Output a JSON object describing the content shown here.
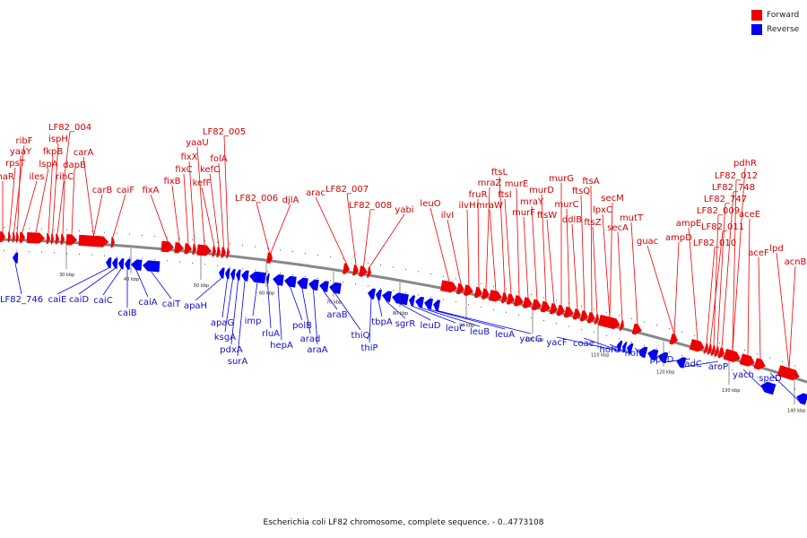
{
  "legend": {
    "forward_label": "Forward",
    "reverse_label": "Reverse",
    "forward_color": "#ee0000",
    "reverse_color": "#0000ee"
  },
  "caption": "Escherichia coli LF82 chromosome, complete sequence. - 0..4773108",
  "colors": {
    "forward_text": "#d00000",
    "reverse_text": "#1010c0",
    "backbone": "#888888"
  },
  "scale_labels": [
    "30 kbp",
    "40 kbp",
    "50 kbp",
    "60 kbp",
    "70 kbp",
    "80 kbp",
    "90 kbp",
    "100 kbp",
    "110 kbp",
    "120 kbp",
    "130 kbp",
    "140 kbp"
  ],
  "forward_genes": [
    "nhaR",
    "rpsT",
    "ribF",
    "yaaY",
    "iles",
    "lspA",
    "fkpB",
    "ispH",
    "LF82_004",
    "rihC",
    "dapB",
    "carA",
    "carB",
    "caiF",
    "fixA",
    "fixB",
    "fixC",
    "fixX",
    "yaaU",
    "kefF",
    "kefC",
    "folA",
    "LF82_005",
    "LF82_006",
    "djlA",
    "arac",
    "LF82_007",
    "LF82_008",
    "yabi",
    "leuO",
    "ilvI",
    "ilvH",
    "fruR",
    "mraZ",
    "mraW",
    "ftsL",
    "ftsI",
    "murE",
    "murF",
    "mraY",
    "murD",
    "ftsW",
    "murG",
    "murC",
    "ddlB",
    "ftsQ",
    "ftsA",
    "ftsZ",
    "lpxC",
    "secM",
    "secA",
    "mutT",
    "guac",
    "ampD",
    "ampE",
    "LF82_010",
    "LF82_011",
    "LF82_009",
    "LF82_747",
    "LF82_748",
    "LF82_012",
    "pdhR",
    "aceE",
    "aceF",
    "lpd",
    "acnB"
  ],
  "reverse_genes": [
    "LF82_746",
    "caiE",
    "caiD",
    "caiC",
    "caiB",
    "caiA",
    "caiT",
    "apaH",
    "apaG",
    "ksgA",
    "pdxA",
    "surA",
    "imp",
    "rluA",
    "hepA",
    "polB",
    "arad",
    "araA",
    "araB",
    "thiQ",
    "thiP",
    "tbpA",
    "sgrR",
    "leuD",
    "leuC",
    "leuB",
    "leuA",
    "yacG",
    "yacF",
    "coae",
    "hofC",
    "hofB",
    "ppdD",
    "nadC",
    "aroP",
    "yach",
    "speD"
  ]
}
